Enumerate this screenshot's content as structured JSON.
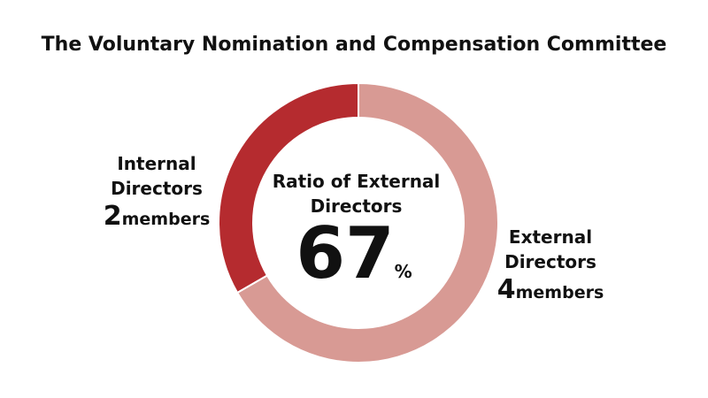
{
  "chart_data": {
    "type": "donut",
    "title": "The Voluntary Nomination and Compensation Committee",
    "categories": [
      "Internal Directors",
      "External Directors"
    ],
    "values": [
      2,
      4
    ],
    "colors": [
      "#b52b2f",
      "#d89a94"
    ],
    "unit_label": "members",
    "center_label": "Ratio of External Directors",
    "center_value": 67,
    "center_unit": "%"
  }
}
